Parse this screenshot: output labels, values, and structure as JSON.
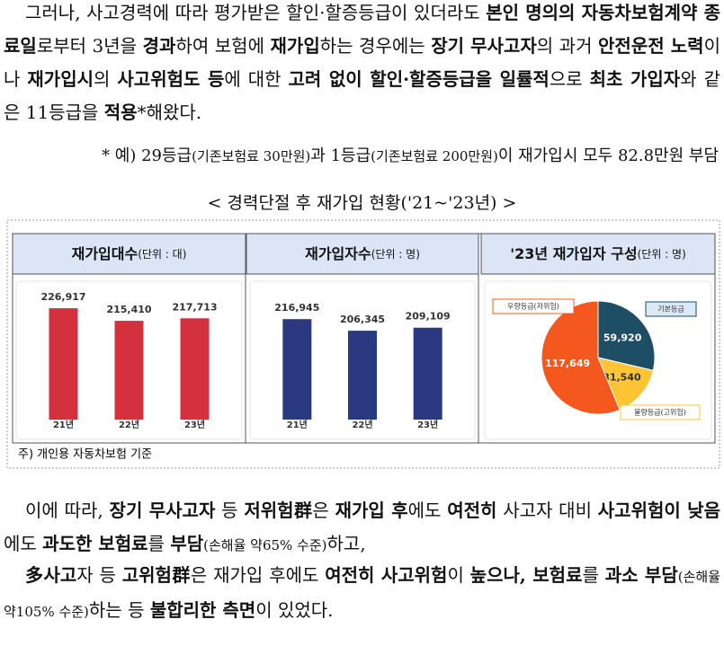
{
  "paragraphs": [
    {
      "runs": [
        {
          "text": "그러나, 사고경력에 따라 평가받은 할인·할증등급이 있더라도 ",
          "style": "normal"
        },
        {
          "text": "본인 명의의 자동차보험계약 종료일",
          "style": "bold"
        },
        {
          "text": "로부터 3년을 ",
          "style": "normal"
        },
        {
          "text": "경과",
          "style": "bold"
        },
        {
          "text": "하여 보험에 ",
          "style": "normal"
        },
        {
          "text": "재가입",
          "style": "bold"
        },
        {
          "text": "하는 경우에는 ",
          "style": "normal"
        },
        {
          "text": "장기 무사고자",
          "style": "bold"
        },
        {
          "text": "의 과거 ",
          "style": "normal"
        },
        {
          "text": "안전운전 노력",
          "style": "bold"
        },
        {
          "text": "이나 ",
          "style": "normal"
        },
        {
          "text": "재가입시",
          "style": "bold"
        },
        {
          "text": "의 ",
          "style": "normal"
        },
        {
          "text": "사고위험도 등",
          "style": "bold"
        },
        {
          "text": "에 대한 ",
          "style": "normal"
        },
        {
          "text": "고려 없이 할인·할증등급을 일률적",
          "style": "bold"
        },
        {
          "text": "으로 ",
          "style": "normal"
        },
        {
          "text": "최초 가입자",
          "style": "bold"
        },
        {
          "text": "와 같은 11등급을 ",
          "style": "normal"
        },
        {
          "text": "적용",
          "style": "bold"
        },
        {
          "text": "*해왔다.",
          "style": "normal"
        }
      ]
    },
    {
      "runs": [
        {
          "text": "이에 따라, ",
          "style": "normal"
        },
        {
          "text": "장기 무사고자",
          "style": "bold"
        },
        {
          "text": " 등 ",
          "style": "normal"
        },
        {
          "text": "저위험群",
          "style": "bold"
        },
        {
          "text": "은 ",
          "style": "normal"
        },
        {
          "text": "재가입 후",
          "style": "bold"
        },
        {
          "text": "에도 ",
          "style": "normal"
        },
        {
          "text": "여전히",
          "style": "bold"
        },
        {
          "text": " 사고자 대비 ",
          "style": "normal"
        },
        {
          "text": "사고위험이 낮음",
          "style": "bold"
        },
        {
          "text": "에도 ",
          "style": "normal"
        },
        {
          "text": "과도한 보험료",
          "style": "bold"
        },
        {
          "text": "를 ",
          "style": "normal"
        },
        {
          "text": "부담",
          "style": "bold"
        },
        {
          "text": "(손해율 약65% 수준)",
          "style": "small"
        },
        {
          "text": "하고,",
          "style": "normal"
        }
      ]
    },
    {
      "runs": [
        {
          "text": "多사고",
          "style": "bold"
        },
        {
          "text": "자 등 ",
          "style": "normal"
        },
        {
          "text": "고위험群",
          "style": "bold"
        },
        {
          "text": "은 재가입 후에도 ",
          "style": "normal"
        },
        {
          "text": "여전히 사고위험",
          "style": "bold"
        },
        {
          "text": "이 ",
          "style": "normal"
        },
        {
          "text": "높으나, 보험료",
          "style": "bold"
        },
        {
          "text": "를 ",
          "style": "normal"
        },
        {
          "text": "과소 부담",
          "style": "bold"
        },
        {
          "text": "(손해율 약105% 수준)",
          "style": "small"
        },
        {
          "text": "하는 등 ",
          "style": "normal"
        },
        {
          "text": "불합리한 측면",
          "style": "bold"
        },
        {
          "text": "이 있었다.",
          "style": "normal"
        }
      ]
    }
  ],
  "footnote": {
    "runs": [
      {
        "text": "* 예) 29등급",
        "style": "normal"
      },
      {
        "text": "(기존보험료 30만원)",
        "style": "small"
      },
      {
        "text": "과 1등급",
        "style": "normal"
      },
      {
        "text": "(기존보험료 200만원)",
        "style": "small"
      },
      {
        "text": "이 재가입시 모두 82.8만원 부담",
        "style": "normal"
      }
    ]
  },
  "section_title": "< 경력단절 후 재가입 현황('21~'23년) >",
  "note": "주) 개인용 자동차보험 기준",
  "chart_data": [
    {
      "type": "bar",
      "title": "재가입대수",
      "unit": "(단위 : 대)",
      "categories": [
        "21년",
        "22년",
        "23년"
      ],
      "values": [
        226917,
        215410,
        217713
      ],
      "value_labels": [
        "226,917",
        "215,410",
        "217,713"
      ],
      "color": "#d2313d",
      "ylim": [
        125000,
        250000
      ]
    },
    {
      "type": "bar",
      "title": "재가입자수",
      "unit": "(단위 : 명)",
      "categories": [
        "21년",
        "22년",
        "23년"
      ],
      "values": [
        216945,
        206345,
        209109
      ],
      "value_labels": [
        "216,945",
        "206,345",
        "209,109"
      ],
      "color": "#2b3a80",
      "ylim": [
        125000,
        250000
      ]
    },
    {
      "type": "pie",
      "title": "'23년 재가입자 구성",
      "unit": "(단위 : 명)",
      "categories": [
        "기본등급",
        "불량등급(고위험)",
        "우량등급(저위험)"
      ],
      "values": [
        59920,
        31540,
        117649
      ],
      "value_labels": [
        "59,920",
        "31,540",
        "117,649"
      ],
      "colors": [
        "#1e4d66",
        "#ffc433",
        "#f4581f"
      ]
    }
  ]
}
